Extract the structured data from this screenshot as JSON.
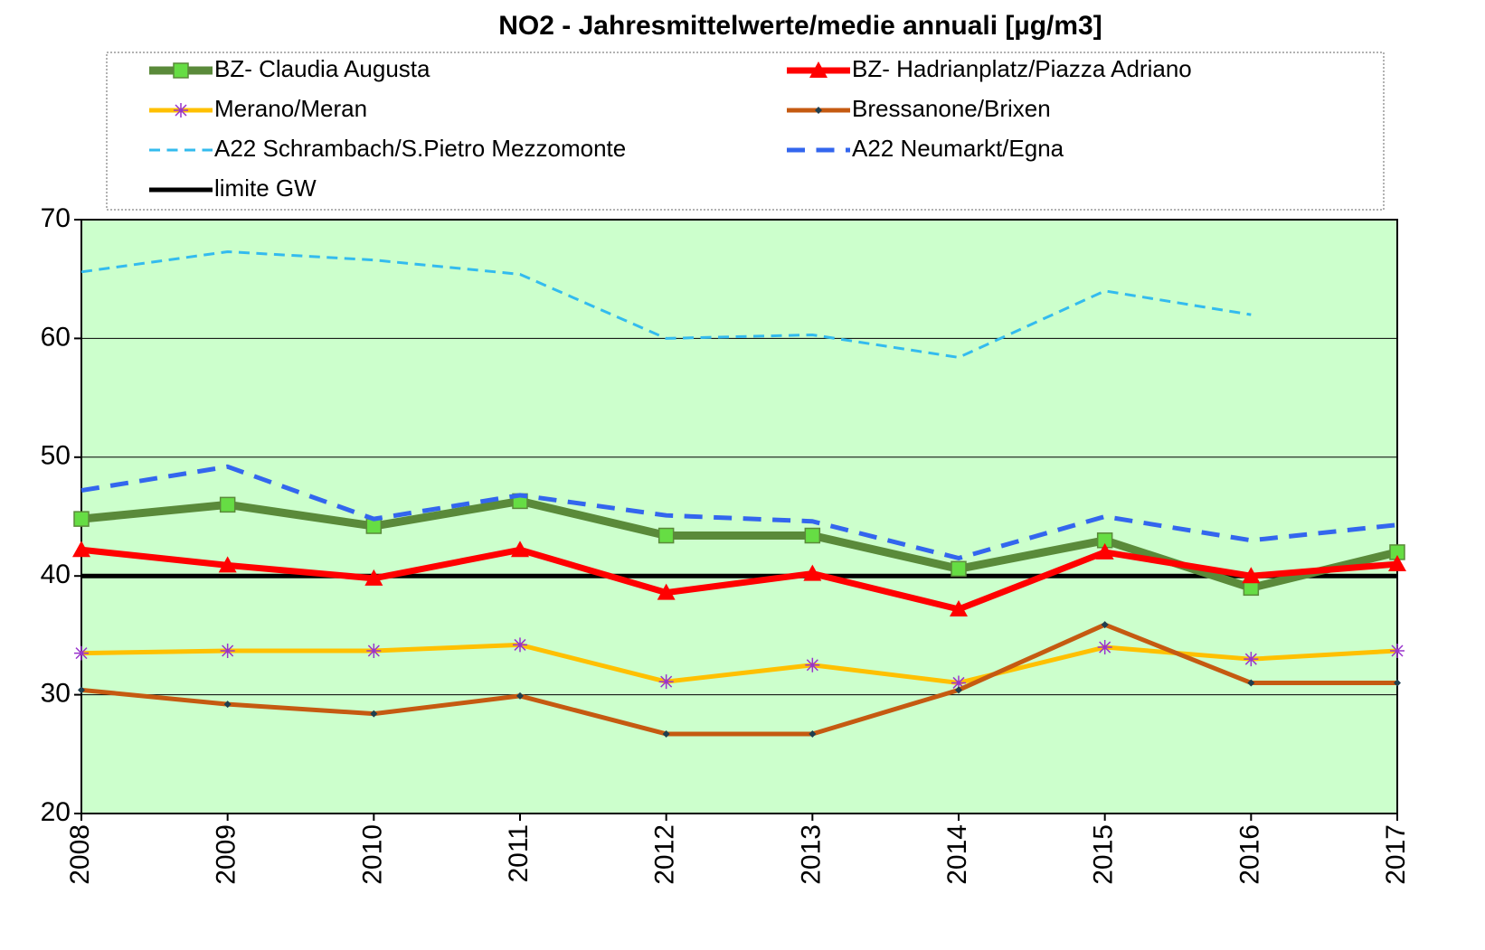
{
  "chart_data": {
    "type": "line",
    "title": "NO2 - Jahresmittelwerte/medie annuali [µg/m3]",
    "categories": [
      "2008",
      "2009",
      "2010",
      "2011",
      "2012",
      "2013",
      "2014",
      "2015",
      "2016",
      "2017"
    ],
    "series": [
      {
        "name": "limite GW",
        "color": "#000000",
        "width": 5,
        "marker": "none",
        "dashed": false,
        "values": [
          40,
          40,
          40,
          40,
          40,
          40,
          40,
          40,
          40,
          40
        ]
      },
      {
        "name": "BZ- Claudia Augusta",
        "color": "#5a8a3a",
        "marker_color": "#66dd44",
        "width": 9,
        "marker": "square",
        "dashed": false,
        "values": [
          44.8,
          46,
          44.2,
          46.3,
          43.4,
          43.4,
          40.6,
          43,
          39,
          42
        ]
      },
      {
        "name": "BZ- Hadrianplatz/Piazza Adriano",
        "color": "#ff0000",
        "marker_color": "#ff0000",
        "width": 7,
        "marker": "triangle",
        "dashed": false,
        "values": [
          42.2,
          40.9,
          39.8,
          42.2,
          38.6,
          40.2,
          37.2,
          42,
          40,
          41
        ]
      },
      {
        "name": "Merano/Meran",
        "color": "#ffc000",
        "marker_color": "#9933cc",
        "width": 5,
        "marker": "asterisk",
        "dashed": false,
        "values": [
          33.5,
          33.7,
          33.7,
          34.2,
          31.1,
          32.5,
          31,
          34,
          33,
          33.7
        ]
      },
      {
        "name": "Bressanone/Brixen",
        "color": "#c55a11",
        "marker_color": "#1f3f4f",
        "width": 5,
        "marker": "diamond",
        "dashed": false,
        "values": [
          30.4,
          29.2,
          28.4,
          29.9,
          26.7,
          26.7,
          30.4,
          35.9,
          31,
          31
        ]
      },
      {
        "name": "A22 Schrambach/S.Pietro Mezzomonte",
        "color": "#33bbee",
        "width": 3,
        "marker": "none",
        "dashed": true,
        "values": [
          65.6,
          67.3,
          66.6,
          65.4,
          60,
          60.3,
          58.4,
          64,
          62,
          null
        ]
      },
      {
        "name": "A22 Neumarkt/Egna",
        "color": "#3366ee",
        "width": 5,
        "marker": "none",
        "dashed": true,
        "values": [
          47.2,
          49.2,
          44.8,
          46.8,
          45.1,
          44.6,
          41.5,
          45,
          43,
          44.3
        ]
      }
    ],
    "legend_order": [
      1,
      2,
      3,
      4,
      5,
      6,
      0
    ],
    "ylim": [
      20,
      70
    ],
    "yticks": [
      20,
      30,
      40,
      50,
      60,
      70
    ],
    "grid": true,
    "plot_background": "#ccffcc"
  }
}
